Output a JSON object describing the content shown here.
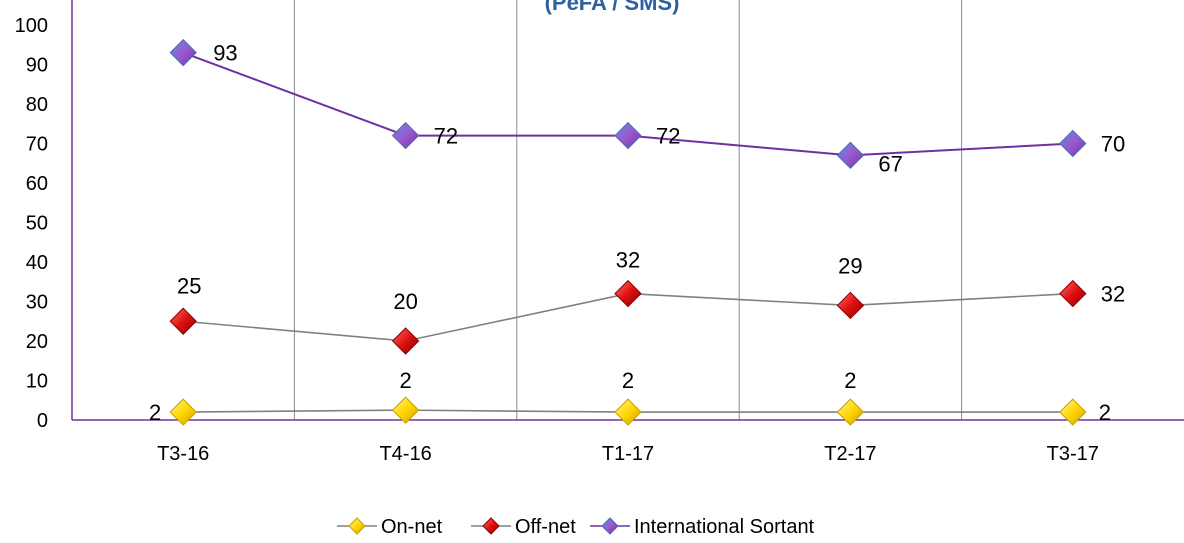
{
  "chart_data": {
    "type": "line",
    "title": "(PeFA / SMS)",
    "xlabel": "",
    "ylabel": "",
    "ylim": [
      0,
      100
    ],
    "yticks": [
      0,
      10,
      20,
      30,
      40,
      50,
      60,
      70,
      80,
      90,
      100
    ],
    "grid": "vertical",
    "legend": "bottom",
    "categories": [
      "T3-16",
      "T4-16",
      "T1-17",
      "T2-17",
      "T3-17"
    ],
    "series": [
      {
        "name": "On-net",
        "values": [
          2,
          2.5,
          2,
          2,
          2
        ],
        "labels": [
          "2",
          "2",
          "2",
          "2",
          "2"
        ],
        "line_color": "#808080",
        "marker_color": "#FFD700",
        "marker_dark": "#C8A000"
      },
      {
        "name": "Off-net",
        "values": [
          25,
          20,
          32,
          29,
          32
        ],
        "labels": [
          "25",
          "20",
          "32",
          "29",
          "32"
        ],
        "line_color": "#808080",
        "marker_color": "#E01010",
        "marker_dark": "#8A0000"
      },
      {
        "name": "International Sortant",
        "values": [
          93,
          72,
          72,
          67,
          70
        ],
        "labels": [
          "93",
          "72",
          "72",
          "67",
          "70"
        ],
        "line_color": "#7030A0",
        "marker_color": "#9B59D0",
        "marker_dark": "#4A6FB0"
      }
    ]
  }
}
